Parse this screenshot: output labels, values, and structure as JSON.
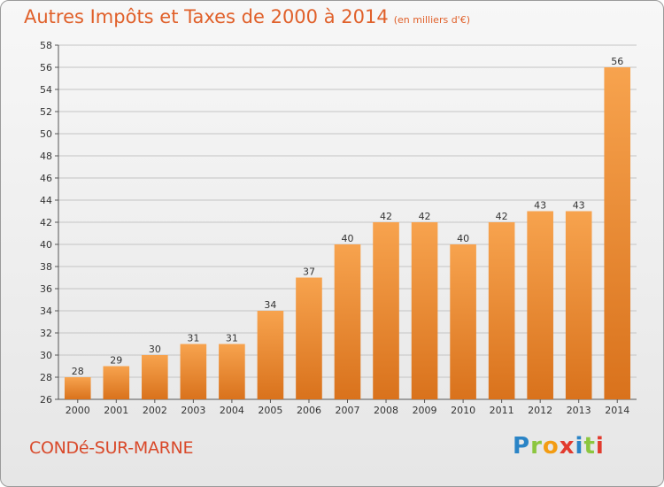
{
  "header": {
    "title": "Autres Impôts et Taxes de 2000 à 2014",
    "unit": "(en milliers d'€)"
  },
  "footer": {
    "commune": "CONDé-SUR-MARNE",
    "logo_letters": [
      {
        "char": "P",
        "color": "#2a84c6"
      },
      {
        "char": "r",
        "color": "#8cc63f"
      },
      {
        "char": "o",
        "color": "#f39c12"
      },
      {
        "char": "x",
        "color": "#e23b2e"
      },
      {
        "char": "i",
        "color": "#2a84c6"
      },
      {
        "char": "t",
        "color": "#8cc63f"
      },
      {
        "char": "i",
        "color": "#e23b2e"
      }
    ]
  },
  "colors": {
    "bar_light": "#f7a34e",
    "bar_dark": "#d9721c",
    "title": "#e0602a",
    "grid": "#c4c4c4"
  },
  "chart_data": {
    "type": "bar",
    "title": "Autres Impôts et Taxes de 2000 à 2014",
    "subtitle": "(en milliers d'€)",
    "xlabel": "",
    "ylabel": "",
    "categories": [
      "2000",
      "2001",
      "2002",
      "2003",
      "2004",
      "2005",
      "2006",
      "2007",
      "2008",
      "2009",
      "2010",
      "2011",
      "2012",
      "2013",
      "2014"
    ],
    "values": [
      28,
      29,
      30,
      31,
      31,
      34,
      37,
      40,
      42,
      42,
      40,
      42,
      43,
      43,
      56
    ],
    "data_labels": [
      "28",
      "29",
      "30",
      "31",
      "31",
      "34",
      "37",
      "40",
      "42",
      "42",
      "40",
      "42",
      "43",
      "43",
      "56"
    ],
    "ylim": [
      26,
      58
    ],
    "yticks": [
      "26",
      "28",
      "30",
      "32",
      "34",
      "36",
      "38",
      "40",
      "42",
      "44",
      "46",
      "48",
      "50",
      "52",
      "54",
      "56",
      "58"
    ],
    "grid": true,
    "legend": "none"
  }
}
